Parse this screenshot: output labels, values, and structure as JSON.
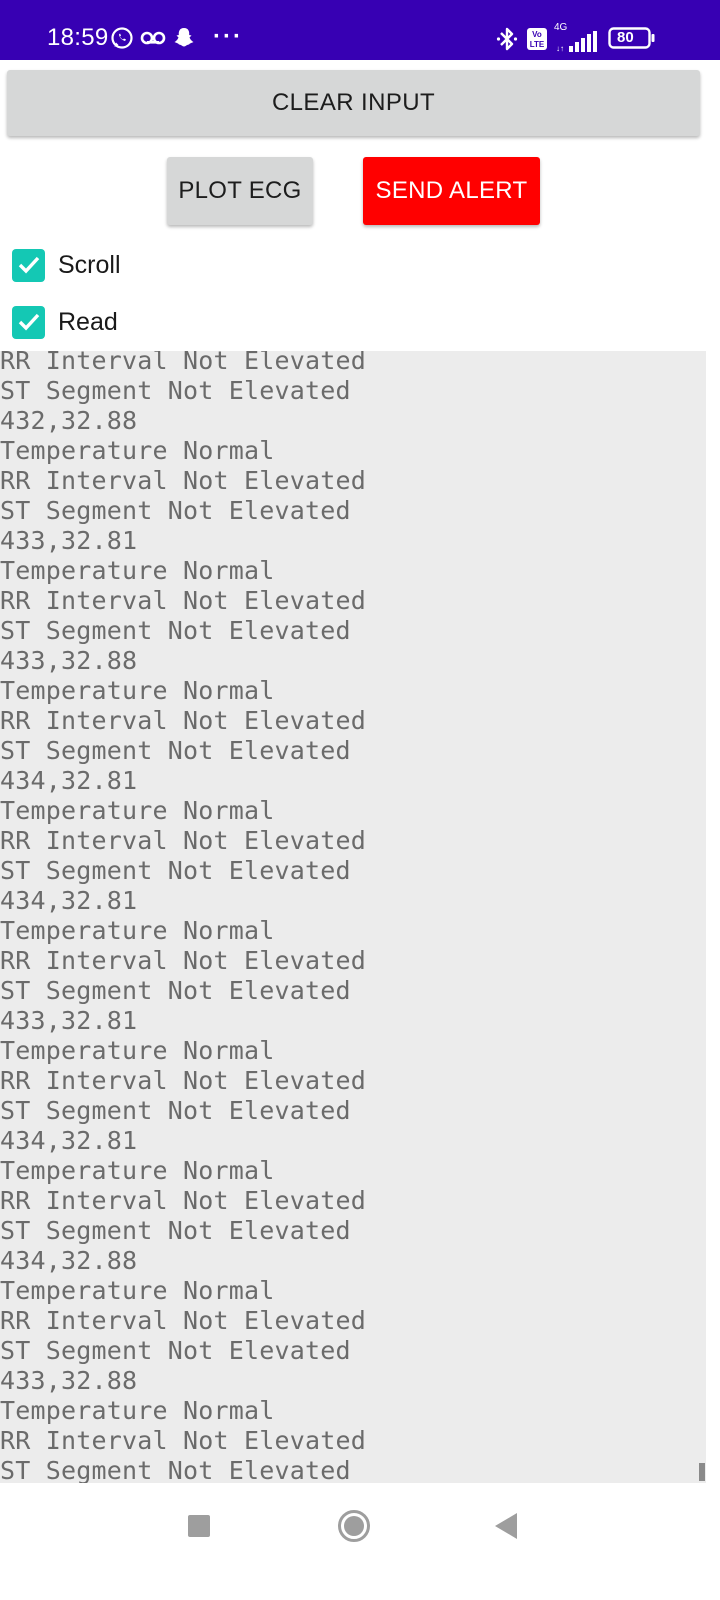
{
  "status_bar": {
    "time": "18:59",
    "battery": "80",
    "network": "4G",
    "volte": "Vo LTE",
    "left_icons": [
      "whatsapp-icon",
      "voicemail-icon",
      "snapchat-icon",
      "more-icon"
    ],
    "right_icons": [
      "bluetooth-icon",
      "volte-icon",
      "signal-icon",
      "battery-icon"
    ]
  },
  "buttons": {
    "clear_input": "CLEAR INPUT",
    "plot_ecg": "PLOT ECG",
    "send_alert": "SEND ALERT"
  },
  "checkboxes": [
    {
      "label": "Scroll",
      "checked": true
    },
    {
      "label": "Read",
      "checked": true
    }
  ],
  "colors": {
    "status_bar": "#3700b3",
    "alert": "#ff0000",
    "checkbox": "#14c8b4",
    "button_gray": "#d6d7d7"
  },
  "console": {
    "lines": [
      "RR Interval Not Elevated",
      "ST Segment Not Elevated",
      "432,32.88",
      "Temperature Normal",
      "RR Interval Not Elevated",
      "ST Segment Not Elevated",
      "433,32.81",
      "Temperature Normal",
      "RR Interval Not Elevated",
      "ST Segment Not Elevated",
      "433,32.88",
      "Temperature Normal",
      "RR Interval Not Elevated",
      "ST Segment Not Elevated",
      "434,32.81",
      "Temperature Normal",
      "RR Interval Not Elevated",
      "ST Segment Not Elevated",
      "434,32.81",
      "Temperature Normal",
      "RR Interval Not Elevated",
      "ST Segment Not Elevated",
      "433,32.81",
      "Temperature Normal",
      "RR Interval Not Elevated",
      "ST Segment Not Elevated",
      "434,32.81",
      "Temperature Normal",
      "RR Interval Not Elevated",
      "ST Segment Not Elevated",
      "434,32.88",
      "Temperature Normal",
      "RR Interval Not Elevated",
      "ST Segment Not Elevated",
      "433,32.88",
      "Temperature Normal",
      "RR Interval Not Elevated",
      "ST Segment Not Elevated"
    ]
  },
  "nav_bar": {
    "icons": [
      "recents-square-icon",
      "home-circle-icon",
      "back-triangle-icon"
    ]
  }
}
